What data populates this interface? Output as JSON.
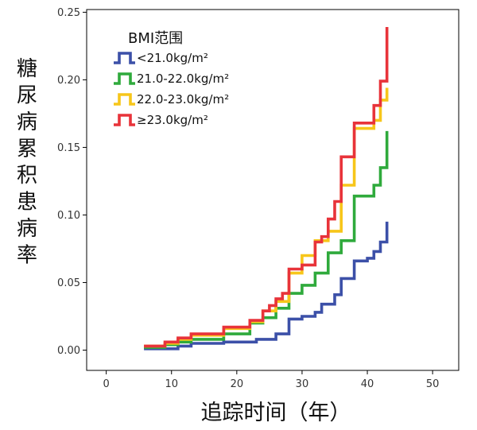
{
  "chart_data": {
    "type": "line",
    "step": true,
    "xlabel": "追踪时间（年）",
    "ylabel": "糖尿病累积患病率",
    "xlim": [
      -3,
      54
    ],
    "ylim": [
      -0.015,
      0.252
    ],
    "xticks": [
      0,
      10,
      20,
      30,
      40,
      50
    ],
    "xtick_labels": [
      "0",
      "10",
      "20",
      "30",
      "40",
      "50"
    ],
    "yticks": [
      0.0,
      0.05,
      0.1,
      0.15,
      0.2,
      0.25
    ],
    "ytick_labels": [
      "0.00",
      "0.05",
      "0.10",
      "0.15",
      "0.20",
      "0.25"
    ],
    "grid": false,
    "legend": {
      "title": "BMI范围",
      "placement": "top-left"
    },
    "series": [
      {
        "name": "<21.0kg/m²",
        "color": "#3c50a8",
        "x": [
          6,
          11,
          13,
          18,
          23,
          26,
          28,
          30,
          32,
          33,
          35,
          36,
          38,
          40,
          41,
          42,
          43
        ],
        "y": [
          0.001,
          0.003,
          0.005,
          0.006,
          0.008,
          0.012,
          0.023,
          0.025,
          0.028,
          0.034,
          0.041,
          0.053,
          0.066,
          0.068,
          0.073,
          0.08,
          0.094
        ]
      },
      {
        "name": "21.0-22.0kg/m²",
        "color": "#2faa3c",
        "x": [
          6,
          9,
          11,
          13,
          18,
          22,
          24,
          26,
          28,
          30,
          32,
          34,
          36,
          38,
          41,
          42,
          43
        ],
        "y": [
          0.002,
          0.004,
          0.006,
          0.008,
          0.012,
          0.02,
          0.024,
          0.031,
          0.042,
          0.048,
          0.057,
          0.072,
          0.081,
          0.114,
          0.122,
          0.135,
          0.161
        ]
      },
      {
        "name": "22.0-23.0kg/m²",
        "color": "#f7c61a",
        "x": [
          6,
          9,
          11,
          13,
          18,
          22,
          24,
          26,
          28,
          30,
          32,
          34,
          36,
          38,
          41,
          42,
          43
        ],
        "y": [
          0.003,
          0.005,
          0.008,
          0.011,
          0.016,
          0.021,
          0.029,
          0.036,
          0.057,
          0.07,
          0.081,
          0.088,
          0.122,
          0.164,
          0.17,
          0.185,
          0.193
        ]
      },
      {
        "name": "≥23.0kg/m²",
        "color": "#e8333a",
        "x": [
          6,
          9,
          11,
          13,
          18,
          22,
          24,
          25,
          26,
          27,
          28,
          30,
          32,
          33,
          34,
          35,
          36,
          38,
          41,
          42,
          43
        ],
        "y": [
          0.003,
          0.006,
          0.009,
          0.012,
          0.017,
          0.022,
          0.029,
          0.033,
          0.038,
          0.042,
          0.06,
          0.063,
          0.08,
          0.084,
          0.097,
          0.11,
          0.143,
          0.168,
          0.181,
          0.199,
          0.238
        ]
      }
    ]
  }
}
